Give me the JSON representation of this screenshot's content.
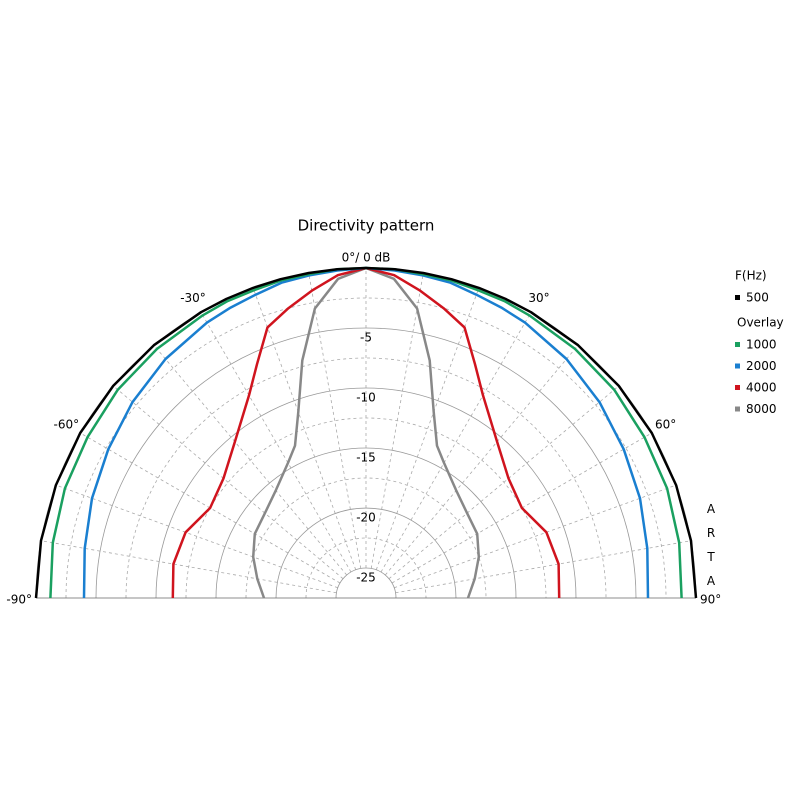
{
  "chart_data": {
    "type": "polar",
    "title": "Directivity pattern",
    "legend_title": "F(Hz)",
    "legend_group": "Overlay",
    "watermark": "ARTA",
    "x": [
      -90,
      -80,
      -70,
      -60,
      -50,
      -40,
      -30,
      -25,
      -20,
      -15,
      -10,
      -5,
      0,
      5,
      10,
      15,
      20,
      25,
      30,
      40,
      50,
      60,
      70,
      80,
      90
    ],
    "series": [
      {
        "name": "500",
        "color": "#000000",
        "values": [
          0,
          0,
          0,
          0,
          0,
          0,
          0,
          0,
          0,
          0,
          0,
          0,
          0,
          0,
          0,
          0,
          0,
          0,
          0,
          0,
          0,
          0,
          0,
          0,
          0
        ]
      },
      {
        "name": "1000",
        "color": "#1aa060",
        "values": [
          -1.2,
          -1,
          -0.8,
          -0.7,
          -0.5,
          -0.4,
          -0.3,
          -0.2,
          -0.2,
          -0.1,
          -0.1,
          0,
          0,
          0,
          -0.1,
          -0.1,
          -0.2,
          -0.2,
          -0.3,
          -0.4,
          -0.5,
          -0.7,
          -0.8,
          -1,
          -1.2
        ]
      },
      {
        "name": "2000",
        "color": "#1a7fd0",
        "values": [
          -4,
          -3.7,
          -3.2,
          -2.7,
          -2.1,
          -1.5,
          -1,
          -0.8,
          -0.6,
          -0.3,
          -0.2,
          -0.1,
          0,
          -0.1,
          -0.2,
          -0.3,
          -0.6,
          -0.8,
          -1,
          -1.5,
          -2.1,
          -2.7,
          -3.2,
          -3.7,
          -4
        ]
      },
      {
        "name": "4000",
        "color": "#d0141e",
        "values": [
          -11.4,
          -11.2,
          -11.5,
          -12.5,
          -12,
          -10.5,
          -8,
          -6,
          -3.5,
          -2.5,
          -1.5,
          -0.5,
          0,
          -0.5,
          -1.5,
          -2.5,
          -3.5,
          -6,
          -8,
          -10.5,
          -12,
          -12.5,
          -11.5,
          -11.2,
          -11.4
        ]
      },
      {
        "name": "8000",
        "color": "#888888",
        "values": [
          -19,
          -18.3,
          -17.5,
          -16.8,
          -16.5,
          -15.8,
          -14.5,
          -13.5,
          -11,
          -7,
          -3,
          -0.8,
          0,
          -0.8,
          -3,
          -7,
          -11,
          -13.5,
          -14.5,
          -15.8,
          -16.5,
          -16.8,
          -17.5,
          -18.3,
          -19
        ]
      }
    ],
    "rlim": [
      -27.5,
      0
    ],
    "rticks": [
      {
        "value": 0,
        "label": "0°/ 0 dB"
      },
      -5,
      -10,
      -15,
      -20,
      -25
    ],
    "angle_ticks": [
      {
        "value": -90,
        "label": "-90°"
      },
      {
        "value": -60,
        "label": "-60°"
      },
      {
        "value": -30,
        "label": "-30°"
      },
      {
        "value": 30,
        "label": "30°"
      },
      {
        "value": 60,
        "label": "60°"
      },
      {
        "value": 90,
        "label": "90°"
      }
    ]
  }
}
